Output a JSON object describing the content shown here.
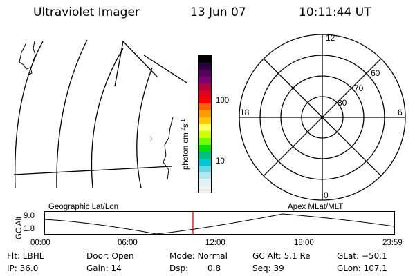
{
  "header": {
    "instrument": "Ultraviolet Imager",
    "date": "13 Jun 07",
    "time": "10:11:44 UT"
  },
  "colorbar": {
    "unit_label": "photon cm",
    "unit_sup1": "-2",
    "unit_mid": "s",
    "unit_sup2": "-1",
    "tick_high": "100",
    "tick_low": "10",
    "colors": [
      "#000000",
      "#2a0040",
      "#55005a",
      "#800070",
      "#b00040",
      "#e00020",
      "#ff0000",
      "#ff6000",
      "#ff9a00",
      "#ffc800",
      "#ffff60",
      "#d0ff00",
      "#70ff00",
      "#00e000",
      "#00c080",
      "#00c8d0",
      "#60d8e8",
      "#b0e8f0",
      "#e0f0f4",
      "#f0f0f0"
    ]
  },
  "polar": {
    "mlt_top": "12",
    "mlt_bottom": "0",
    "mlt_left": "18",
    "mlt_right": "6",
    "lat_60": "60",
    "lat_70": "70",
    "lat_80": "80"
  },
  "timeline": {
    "left_title": "Geographic Lat/Lon",
    "right_title": "Apex MLat/MLT",
    "axis_label": "GC Alt",
    "y_max": "9.0",
    "y_min": "1.8",
    "ticks": [
      "00:00",
      "06:00",
      "12:00",
      "18:00",
      "23:59"
    ],
    "marker_color": "#e00000",
    "marker_fraction": 0.4248
  },
  "info": {
    "filter": "Flt: LBHL",
    "door": "Door: Open",
    "mode": "Mode: Normal",
    "gc_alt": "GC Alt: 5.1 Re",
    "glat": "GLat: −50.1",
    "ip": "IP: 36.0",
    "gain": "Gain: 14",
    "dsp": "Dsp:",
    "dsp_value": "0.8",
    "seq": "Seq: 39",
    "glon": "GLon: 107.1"
  }
}
